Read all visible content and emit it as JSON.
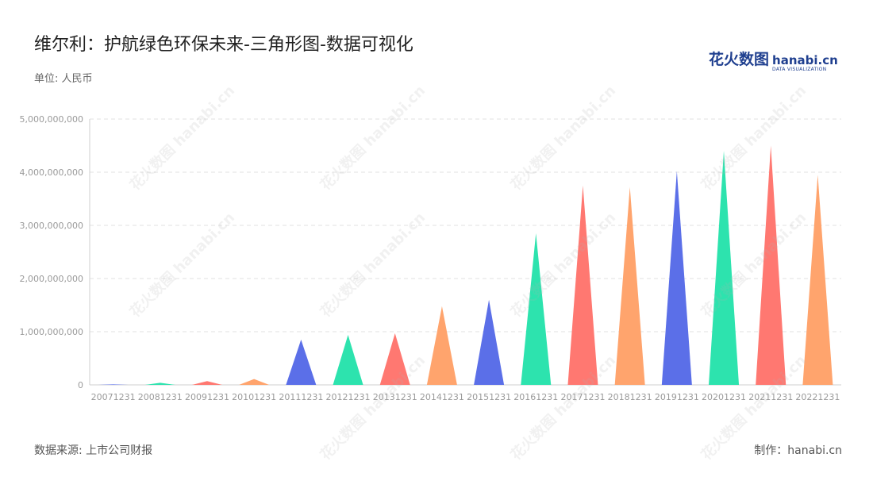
{
  "header": {
    "title": "维尔利：护航绿色环保未来-三角形图-数据可视化",
    "unit": "单位: 人民币"
  },
  "logo": {
    "cn": "花火数图",
    "en": "hanabi.cn",
    "sub": "DATA VISUALIZATION"
  },
  "footer": {
    "source": "数据来源: 上市公司财报",
    "maker": "制作：hanabi.cn"
  },
  "watermark": "花火数图 hanabi.cn",
  "chart_data": {
    "type": "bar",
    "mark": "triangle",
    "categories": [
      "20071231",
      "20081231",
      "20091231",
      "20101231",
      "20111231",
      "20121231",
      "20131231",
      "20141231",
      "20151231",
      "20161231",
      "20171231",
      "20181231",
      "20191231",
      "20201231",
      "20211231",
      "20221231"
    ],
    "values": [
      10000000,
      40000000,
      70000000,
      110000000,
      850000000,
      940000000,
      970000000,
      1480000000,
      1600000000,
      2850000000,
      3750000000,
      3720000000,
      4020000000,
      4400000000,
      4500000000,
      3950000000
    ],
    "colors": [
      "#5b6fe8",
      "#2de3ae",
      "#ff7871",
      "#ffa46d"
    ],
    "yticks": [
      0,
      1000000000,
      2000000000,
      3000000000,
      4000000000,
      5000000000
    ],
    "ytick_labels": [
      "0",
      "1,000,000,000",
      "2,000,000,000",
      "3,000,000,000",
      "4,000,000,000",
      "5,000,000,000"
    ],
    "ylim": [
      0,
      5000000000
    ],
    "grid": true,
    "grid_color": "#e2e2e2",
    "axis_label_color": "#9a9a9a"
  }
}
